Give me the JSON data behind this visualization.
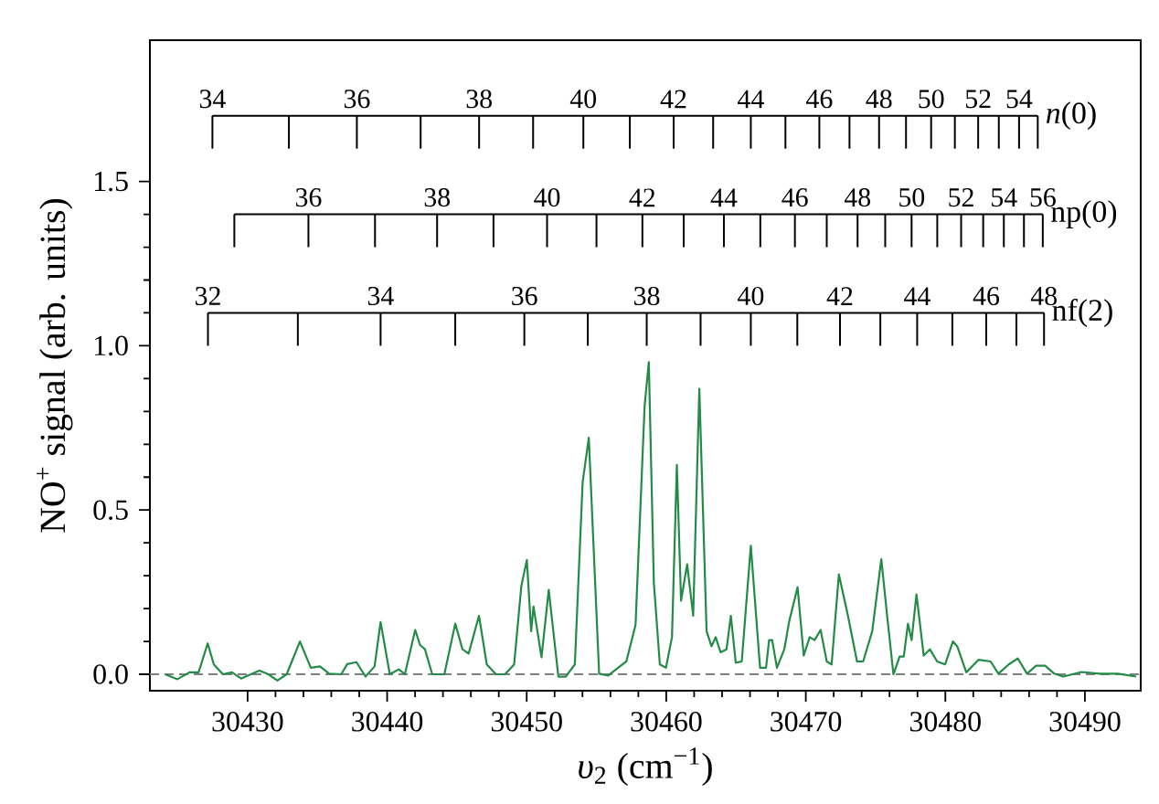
{
  "chart_data": {
    "type": "line",
    "xlabel": "*υ*$_{2}$ (cm$^{−1}$)",
    "ylabel": "NO$^{+}$ signal (arb. units)",
    "xlim": [
      30423,
      30494
    ],
    "ylim": [
      -0.05,
      1.93
    ],
    "xticks": [
      30430,
      30440,
      30450,
      30460,
      30470,
      30480,
      30490
    ],
    "yticks": [
      {
        "value": 0,
        "label": "0.0"
      },
      {
        "value": 0.5,
        "label": "0.5"
      },
      {
        "value": 1,
        "label": "1.0"
      },
      {
        "value": 1.5,
        "label": "1.5"
      }
    ],
    "ref_lines": [
      {
        "axis": "y",
        "value": 0,
        "color": "#808080",
        "line_style": "dashed"
      }
    ],
    "annotations": [
      {
        "text": "34",
        "x": 30427.48,
        "y": 1.7
      },
      {
        "text": "36",
        "x": 30437.83,
        "y": 1.7
      },
      {
        "text": "38",
        "x": 30446.59,
        "y": 1.7
      },
      {
        "text": "40",
        "x": 30454.06,
        "y": 1.7
      },
      {
        "text": "42",
        "x": 30460.53,
        "y": 1.7
      },
      {
        "text": "44",
        "x": 30466.06,
        "y": 1.7
      },
      {
        "text": "46",
        "x": 30470.97,
        "y": 1.7
      },
      {
        "text": "48",
        "x": 30475.25,
        "y": 1.7
      },
      {
        "text": "50",
        "x": 30478.98,
        "y": 1.7
      },
      {
        "text": "52",
        "x": 30482.35,
        "y": 1.7
      },
      {
        "text": "54",
        "x": 30485.28,
        "y": 1.7
      },
      {
        "text": "36",
        "x": 30434.36,
        "y": 1.4
      },
      {
        "text": "38",
        "x": 30443.58,
        "y": 1.4
      },
      {
        "text": "40",
        "x": 30451.46,
        "y": 1.4
      },
      {
        "text": "42",
        "x": 30458.29,
        "y": 1.4
      },
      {
        "text": "44",
        "x": 30464.13,
        "y": 1.4
      },
      {
        "text": "46",
        "x": 30469.22,
        "y": 1.4
      },
      {
        "text": "48",
        "x": 30473.71,
        "y": 1.4
      },
      {
        "text": "50",
        "x": 30477.58,
        "y": 1.4
      },
      {
        "text": "52",
        "x": 30481.13,
        "y": 1.4
      },
      {
        "text": "54",
        "x": 30484.19,
        "y": 1.4
      },
      {
        "text": "56",
        "x": 30486.98,
        "y": 1.4
      },
      {
        "text": "32",
        "x": 30427.16,
        "y": 1.1
      },
      {
        "text": "34",
        "x": 30439.53,
        "y": 1.1
      },
      {
        "text": "36",
        "x": 30449.83,
        "y": 1.1
      },
      {
        "text": "38",
        "x": 30458.6,
        "y": 1.1
      },
      {
        "text": "40",
        "x": 30466.06,
        "y": 1.1
      },
      {
        "text": "42",
        "x": 30472.45,
        "y": 1.1
      },
      {
        "text": "44",
        "x": 30477.98,
        "y": 1.1
      },
      {
        "text": "46",
        "x": 30482.93,
        "y": 1.1
      },
      {
        "text": "48",
        "x": 30487.07,
        "y": 1.1
      }
    ],
    "series": [
      {
        "color": "#238b45",
        "x": [
          30424.1,
          30424.97,
          30425.84,
          30426.49,
          30427.14,
          30427.58,
          30428.23,
          30428.88,
          30429.53,
          30430.84,
          30431.49,
          30432.14,
          30432.8,
          30433.75,
          30434.53,
          30435.19,
          30435.84,
          30436.71,
          30437.14,
          30437.8,
          30438.45,
          30439.1,
          30439.53,
          30440.19,
          30440.84,
          30441.27,
          30442.01,
          30442.36,
          30442.71,
          30443.23,
          30444.1,
          30444.88,
          30445.4,
          30445.84,
          30446.58,
          30447.14,
          30447.8,
          30448.45,
          30449.1,
          30449.62,
          30450.01,
          30450.32,
          30450.49,
          30451.06,
          30451.58,
          30452.27,
          30452.8,
          30453.45,
          30454.01,
          30454.45,
          30455.19,
          30455.84,
          30457.14,
          30457.8,
          30458.45,
          30458.75,
          30459.11,
          30459.54,
          30459.98,
          30460.41,
          30460.76,
          30461.06,
          30461.5,
          30461.93,
          30462.37,
          30462.89,
          30463.24,
          30463.54,
          30463.89,
          30464.32,
          30464.63,
          30464.98,
          30465.41,
          30466.06,
          30466.72,
          30467.15,
          30467.37,
          30467.59,
          30467.93,
          30468.46,
          30468.8,
          30469.41,
          30469.85,
          30470.28,
          30470.63,
          30471.06,
          30471.5,
          30471.85,
          30472.37,
          30473.02,
          30473.67,
          30474.11,
          30474.76,
          30475.41,
          30475.85,
          30476.28,
          30476.72,
          30477.02,
          30477.32,
          30477.58,
          30477.93,
          30478.45,
          30478.89,
          30479.41,
          30479.98,
          30480.54,
          30480.85,
          30481.5,
          30482.37,
          30483.24,
          30483.8,
          30484.54,
          30485.19,
          30485.85,
          30486.5,
          30487.15,
          30487.8,
          30488.45,
          30489.76,
          30491.06,
          30492.37,
          30493.67
        ],
        "values": [
          0,
          -0.015,
          0.006,
          0.006,
          0.094,
          0.03,
          0,
          0.006,
          -0.013,
          0.011,
          0,
          -0.019,
          0,
          0.1,
          0.02,
          0.024,
          0.002,
          0,
          0.031,
          0.037,
          -0.007,
          0.024,
          0.159,
          0,
          0.015,
          0,
          0.135,
          0.089,
          0.076,
          0,
          0,
          0.154,
          0.076,
          0.063,
          0.178,
          0.03,
          0,
          0,
          0.03,
          0.27,
          0.348,
          0.131,
          0.206,
          0.052,
          0.257,
          -0.007,
          -0.007,
          0.03,
          0.585,
          0.72,
          0.002,
          -0.004,
          0.039,
          0.15,
          0.817,
          0.95,
          0.28,
          0.03,
          0.02,
          0.113,
          0.637,
          0.224,
          0.335,
          0.178,
          0.869,
          0.131,
          0.085,
          0.113,
          0.067,
          0.076,
          0.178,
          0.035,
          0.039,
          0.391,
          0.02,
          0.02,
          0.104,
          0.104,
          0.02,
          0.076,
          0.159,
          0.265,
          0.057,
          0.113,
          0.104,
          0.135,
          0.039,
          0.03,
          0.304,
          0.178,
          0.039,
          0.039,
          0.131,
          0.35,
          0.169,
          0,
          0.054,
          0.054,
          0.154,
          0.104,
          0.243,
          0.057,
          0.076,
          0.039,
          0.03,
          0.1,
          0.085,
          0.006,
          0.044,
          0.039,
          0.002,
          0.03,
          0.048,
          0.002,
          0.026,
          0.026,
          0.002,
          -0.007,
          0.007,
          0.002,
          0.002,
          -0.007
        ]
      },
      {
        "name": "*n*(0)",
        "color": "#000000",
        "x": [
          30427.48,
          30432.96,
          30437.83,
          30442.4,
          30446.59,
          30450.46,
          30454.06,
          30457.39,
          30460.53,
          30463.36,
          30466.06,
          30468.54,
          30470.97,
          30473.13,
          30475.25,
          30477.18,
          30478.98,
          30480.68,
          30482.35,
          30483.83,
          30485.28,
          30486.62
        ],
        "values": [
          1.7,
          1.7,
          1.7,
          1.7,
          1.7,
          1.7,
          1.7,
          1.7,
          1.7,
          1.7,
          1.7,
          1.7,
          1.7,
          1.7,
          1.7,
          1.7,
          1.7,
          1.7,
          1.7,
          1.7,
          1.7,
          1.7
        ],
        "errors": [
          [
            1.6,
            1.7
          ],
          [
            1.6,
            1.7
          ],
          [
            1.6,
            1.7
          ],
          [
            1.6,
            1.7
          ],
          [
            1.6,
            1.7
          ],
          [
            1.6,
            1.7
          ],
          [
            1.6,
            1.7
          ],
          [
            1.6,
            1.7
          ],
          [
            1.6,
            1.7
          ],
          [
            1.6,
            1.7
          ],
          [
            1.6,
            1.7
          ],
          [
            1.6,
            1.7
          ],
          [
            1.6,
            1.7
          ],
          [
            1.6,
            1.7
          ],
          [
            1.6,
            1.7
          ],
          [
            1.6,
            1.7
          ],
          [
            1.6,
            1.7
          ],
          [
            1.6,
            1.7
          ],
          [
            1.6,
            1.7
          ],
          [
            1.6,
            1.7
          ],
          [
            1.6,
            1.7
          ],
          [
            1.6,
            1.7
          ]
        ]
      },
      {
        "name": "np(0)",
        "color": "#000000",
        "x": [
          30429.05,
          30434.36,
          30439.13,
          30443.58,
          30447.62,
          30451.46,
          30455.0,
          30458.29,
          30461.25,
          30464.13,
          30466.74,
          30469.22,
          30471.5,
          30473.71,
          30475.69,
          30477.58,
          30479.42,
          30481.13,
          30482.71,
          30484.19,
          30485.63,
          30486.98
        ],
        "values": [
          1.4,
          1.4,
          1.4,
          1.4,
          1.4,
          1.4,
          1.4,
          1.4,
          1.4,
          1.4,
          1.4,
          1.4,
          1.4,
          1.4,
          1.4,
          1.4,
          1.4,
          1.4,
          1.4,
          1.4,
          1.4,
          1.4
        ],
        "errors": [
          [
            1.3,
            1.4
          ],
          [
            1.3,
            1.4
          ],
          [
            1.3,
            1.4
          ],
          [
            1.3,
            1.4
          ],
          [
            1.3,
            1.4
          ],
          [
            1.3,
            1.4
          ],
          [
            1.3,
            1.4
          ],
          [
            1.3,
            1.4
          ],
          [
            1.3,
            1.4
          ],
          [
            1.3,
            1.4
          ],
          [
            1.3,
            1.4
          ],
          [
            1.3,
            1.4
          ],
          [
            1.3,
            1.4
          ],
          [
            1.3,
            1.4
          ],
          [
            1.3,
            1.4
          ],
          [
            1.3,
            1.4
          ],
          [
            1.3,
            1.4
          ],
          [
            1.3,
            1.4
          ],
          [
            1.3,
            1.4
          ],
          [
            1.3,
            1.4
          ],
          [
            1.3,
            1.4
          ],
          [
            1.3,
            1.4
          ]
        ]
      },
      {
        "name": "nf(2)",
        "color": "#000000",
        "x": [
          30427.16,
          30433.6,
          30439.53,
          30444.88,
          30449.83,
          30454.38,
          30458.6,
          30462.46,
          30466.06,
          30469.39,
          30472.45,
          30475.34,
          30477.98,
          30480.5,
          30482.93,
          30485.09,
          30487.07
        ],
        "values": [
          1.1,
          1.1,
          1.1,
          1.1,
          1.1,
          1.1,
          1.1,
          1.1,
          1.1,
          1.1,
          1.1,
          1.1,
          1.1,
          1.1,
          1.1,
          1.1,
          1.1
        ],
        "errors": [
          [
            1.0,
            1.1
          ],
          [
            1.0,
            1.1
          ],
          [
            1.0,
            1.1
          ],
          [
            1.0,
            1.1
          ],
          [
            1.0,
            1.1
          ],
          [
            1.0,
            1.1
          ],
          [
            1.0,
            1.1
          ],
          [
            1.0,
            1.1
          ],
          [
            1.0,
            1.1
          ],
          [
            1.0,
            1.1
          ],
          [
            1.0,
            1.1
          ],
          [
            1.0,
            1.1
          ],
          [
            1.0,
            1.1
          ],
          [
            1.0,
            1.1
          ],
          [
            1.0,
            1.1
          ],
          [
            1.0,
            1.1
          ],
          [
            1.0,
            1.1
          ]
        ]
      }
    ]
  }
}
